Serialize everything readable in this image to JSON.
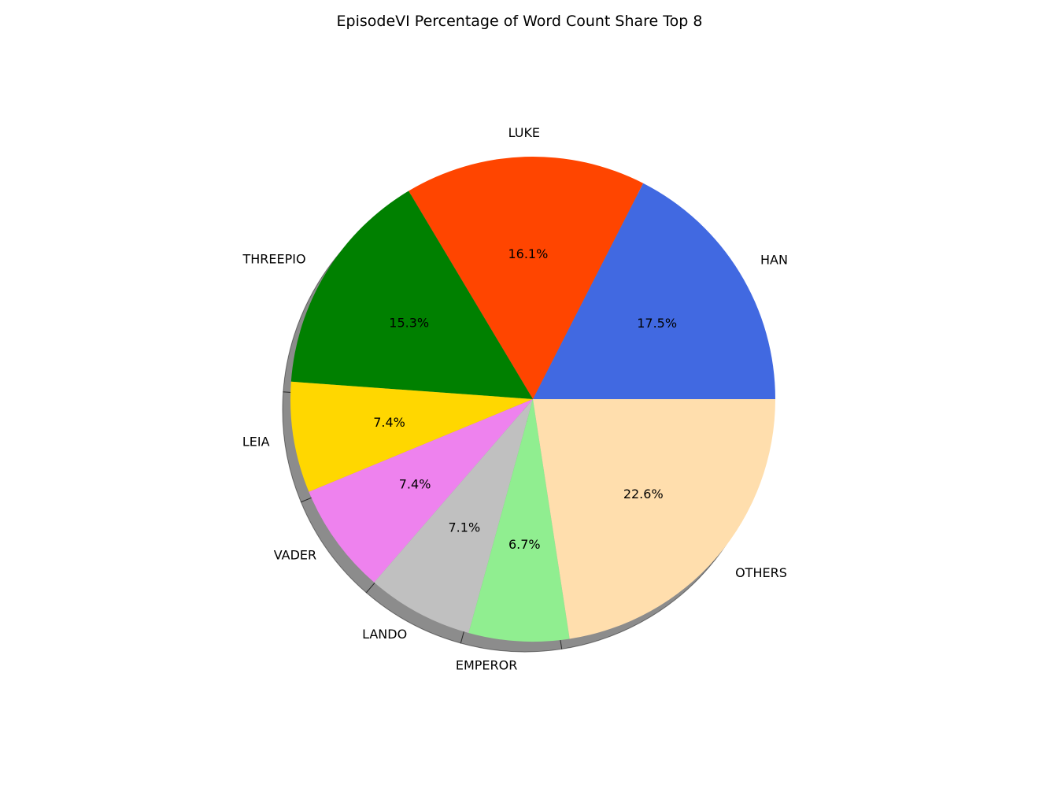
{
  "chart_data": {
    "type": "pie",
    "title": "EpisodeVI Percentage of Word Count Share Top 8",
    "start_angle_deg": 0,
    "direction": "counterclockwise",
    "shadow": true,
    "slices": [
      {
        "label": "HAN",
        "value": 17.5,
        "pct_label": "17.5%",
        "color": "#4169E1"
      },
      {
        "label": "LUKE",
        "value": 16.1,
        "pct_label": "16.1%",
        "color": "#FF4500"
      },
      {
        "label": "THREEPIO",
        "value": 15.3,
        "pct_label": "15.3%",
        "color": "#008000"
      },
      {
        "label": "LEIA",
        "value": 7.4,
        "pct_label": "7.4%",
        "color": "#FFD700"
      },
      {
        "label": "VADER",
        "value": 7.4,
        "pct_label": "7.4%",
        "color": "#EE82EE"
      },
      {
        "label": "LANDO",
        "value": 7.1,
        "pct_label": "7.1%",
        "color": "#C0C0C0"
      },
      {
        "label": "EMPEROR",
        "value": 6.7,
        "pct_label": "6.7%",
        "color": "#90EE90"
      },
      {
        "label": "OTHERS",
        "value": 22.6,
        "pct_label": "22.6%",
        "color": "#FFDEAD"
      }
    ]
  }
}
